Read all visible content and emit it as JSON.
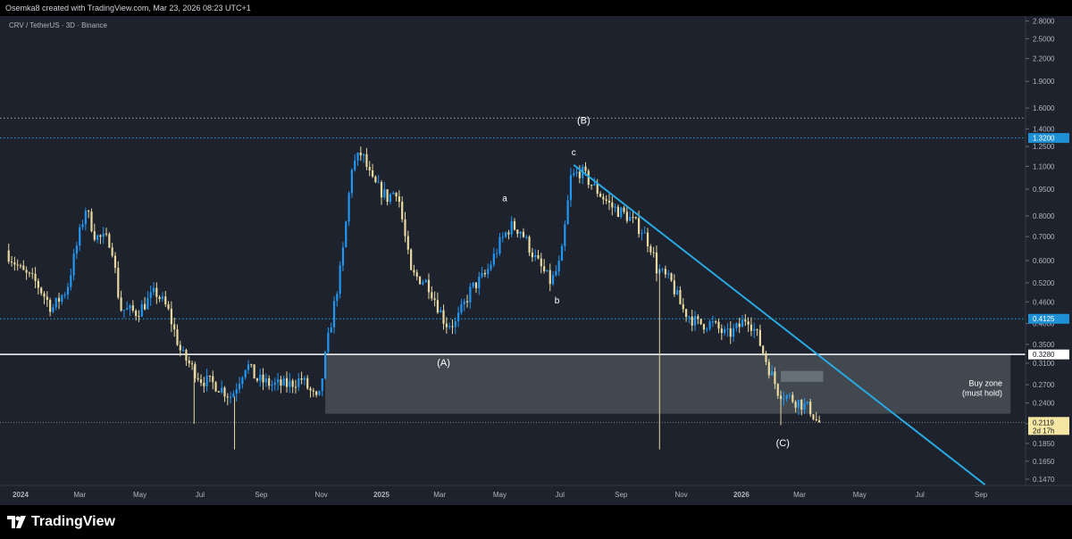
{
  "header": {
    "attribution": "Osemka8 created with TradingView.com, Mar 23, 2026 08:23 UTC+1"
  },
  "chart_title": "CRV / TetherUS · 3D · Binance",
  "footer": {
    "brand": "TradingView"
  },
  "colors": {
    "background": "#1e222d",
    "up_candle": "#2196f3",
    "down_candle": "#e8d9a0",
    "trendline": "#29a9e1",
    "zone_fill": "#4a5359",
    "dotted_level": "#29a9e1",
    "current_price_tag": "#f5e6a3"
  },
  "chart_data": {
    "type": "candlestick",
    "scale": "log",
    "ylim": [
      0.14,
      2.9
    ],
    "y_ticks": [
      "2.8000",
      "2.5000",
      "2.2000",
      "1.9000",
      "1.6000",
      "1.4000",
      "1.2500",
      "1.1000",
      "0.9500",
      "0.8000",
      "0.7000",
      "0.6000",
      "0.5200",
      "0.4600",
      "0.4000",
      "0.3500",
      "0.3100",
      "0.2700",
      "0.2400",
      "0.2100",
      "0.1850",
      "0.1650",
      "0.1470"
    ],
    "x_ticks": [
      {
        "label": "2024",
        "date": "2024-01-01",
        "bold": true
      },
      {
        "label": "Mar",
        "date": "2024-03-01"
      },
      {
        "label": "May",
        "date": "2024-05-01"
      },
      {
        "label": "Jul",
        "date": "2024-07-01"
      },
      {
        "label": "Sep",
        "date": "2024-09-01"
      },
      {
        "label": "Nov",
        "date": "2024-11-01"
      },
      {
        "label": "2025",
        "date": "2025-01-01",
        "bold": true
      },
      {
        "label": "Mar",
        "date": "2025-03-01"
      },
      {
        "label": "May",
        "date": "2025-05-01"
      },
      {
        "label": "Jul",
        "date": "2025-07-01"
      },
      {
        "label": "Sep",
        "date": "2025-09-01"
      },
      {
        "label": "Nov",
        "date": "2025-11-01"
      },
      {
        "label": "2026",
        "date": "2026-01-01",
        "bold": true
      },
      {
        "label": "Mar",
        "date": "2026-03-01"
      },
      {
        "label": "May",
        "date": "2026-05-01"
      },
      {
        "label": "Jul",
        "date": "2026-07-01"
      },
      {
        "label": "Sep",
        "date": "2026-09-01"
      }
    ],
    "price_path": [
      [
        "2023-12-20",
        0.64
      ],
      [
        "2024-01-05",
        0.56
      ],
      [
        "2024-01-20",
        0.52
      ],
      [
        "2024-02-05",
        0.44
      ],
      [
        "2024-02-20",
        0.5
      ],
      [
        "2024-03-01",
        0.66
      ],
      [
        "2024-03-10",
        0.84
      ],
      [
        "2024-03-20",
        0.7
      ],
      [
        "2024-04-05",
        0.68
      ],
      [
        "2024-04-14",
        0.44
      ],
      [
        "2024-05-01",
        0.43
      ],
      [
        "2024-05-20",
        0.49
      ],
      [
        "2024-06-01",
        0.44
      ],
      [
        "2024-06-15",
        0.33
      ],
      [
        "2024-07-05",
        0.28
      ],
      [
        "2024-07-20",
        0.27
      ],
      [
        "2024-08-05",
        0.25
      ],
      [
        "2024-08-20",
        0.31
      ],
      [
        "2024-08-30",
        0.28
      ],
      [
        "2024-09-15",
        0.27
      ],
      [
        "2024-10-01",
        0.27
      ],
      [
        "2024-10-15",
        0.28
      ],
      [
        "2024-11-01",
        0.24
      ],
      [
        "2024-11-10",
        0.35
      ],
      [
        "2024-11-25",
        0.6
      ],
      [
        "2024-12-05",
        1.1
      ],
      [
        "2024-12-15",
        1.2
      ],
      [
        "2024-12-25",
        1.0
      ],
      [
        "2025-01-10",
        0.9
      ],
      [
        "2025-01-20",
        0.95
      ],
      [
        "2025-02-03",
        0.55
      ],
      [
        "2025-02-20",
        0.52
      ],
      [
        "2025-03-10",
        0.4
      ],
      [
        "2025-03-20",
        0.4
      ],
      [
        "2025-04-05",
        0.5
      ],
      [
        "2025-04-20",
        0.55
      ],
      [
        "2025-05-05",
        0.68
      ],
      [
        "2025-05-15",
        0.75
      ],
      [
        "2025-05-25",
        0.73
      ],
      [
        "2025-06-10",
        0.6
      ],
      [
        "2025-06-25",
        0.52
      ],
      [
        "2025-07-05",
        0.6
      ],
      [
        "2025-07-15",
        1.02
      ],
      [
        "2025-07-25",
        1.07
      ],
      [
        "2025-08-05",
        0.98
      ],
      [
        "2025-08-25",
        0.85
      ],
      [
        "2025-09-10",
        0.8
      ],
      [
        "2025-09-25",
        0.73
      ],
      [
        "2025-10-05",
        0.65
      ],
      [
        "2025-10-10",
        0.57
      ],
      [
        "2025-10-25",
        0.52
      ],
      [
        "2025-11-05",
        0.44
      ],
      [
        "2025-11-20",
        0.4
      ],
      [
        "2025-12-05",
        0.4
      ],
      [
        "2025-12-20",
        0.37
      ],
      [
        "2026-01-01",
        0.39
      ],
      [
        "2026-01-10",
        0.42
      ],
      [
        "2026-01-20",
        0.37
      ],
      [
        "2026-02-01",
        0.3
      ],
      [
        "2026-02-10",
        0.26
      ],
      [
        "2026-02-20",
        0.25
      ],
      [
        "2026-03-05",
        0.24
      ],
      [
        "2026-03-15",
        0.23
      ],
      [
        "2026-03-22",
        0.212
      ]
    ],
    "spikes": [
      {
        "date": "2024-06-25",
        "low": 0.21
      },
      {
        "date": "2024-08-05",
        "low": 0.178
      },
      {
        "date": "2025-10-10",
        "low": 0.178
      },
      {
        "date": "2026-02-10",
        "low": 0.208
      }
    ],
    "horizontal_levels": [
      {
        "price": 1.32,
        "label": "1.3200",
        "style": "dotted",
        "color": "#29a9e1"
      },
      {
        "price": 0.4125,
        "label": "0.4125",
        "style": "dotted",
        "color": "#29a9e1"
      },
      {
        "price": 0.328,
        "label": "0.3280",
        "style": "solid",
        "color": "#ffffff"
      },
      {
        "price": 1.5,
        "label": "",
        "style": "dotted",
        "color": "#9aa0a6"
      }
    ],
    "current_price": {
      "value": "0.2119",
      "countdown": "2d 17h"
    },
    "buy_zone": {
      "from": "2024-11-05",
      "to": "2026-10-01",
      "top": 0.328,
      "bottom": 0.224,
      "label_line1": "Buy zone",
      "label_line2": "(must hold)"
    },
    "small_box": {
      "from": "2026-02-10",
      "to": "2026-03-25",
      "top": 0.295,
      "bottom": 0.275
    },
    "trendline": {
      "start": {
        "date": "2025-07-15",
        "price": 1.11
      },
      "end": {
        "date": "2026-09-05",
        "price": 0.142
      }
    },
    "wave_labels": [
      {
        "text": "(B)",
        "date": "2025-07-25",
        "price": 1.45,
        "size": 11
      },
      {
        "text": "c",
        "date": "2025-07-15",
        "price": 1.18,
        "size": 10
      },
      {
        "text": "a",
        "date": "2025-05-06",
        "price": 0.88,
        "size": 10
      },
      {
        "text": "b",
        "date": "2025-06-28",
        "price": 0.455,
        "size": 10
      },
      {
        "text": "(A)",
        "date": "2025-03-05",
        "price": 0.305,
        "size": 11
      },
      {
        "text": "(C)",
        "date": "2026-02-12",
        "price": 0.182,
        "size": 11
      }
    ]
  }
}
